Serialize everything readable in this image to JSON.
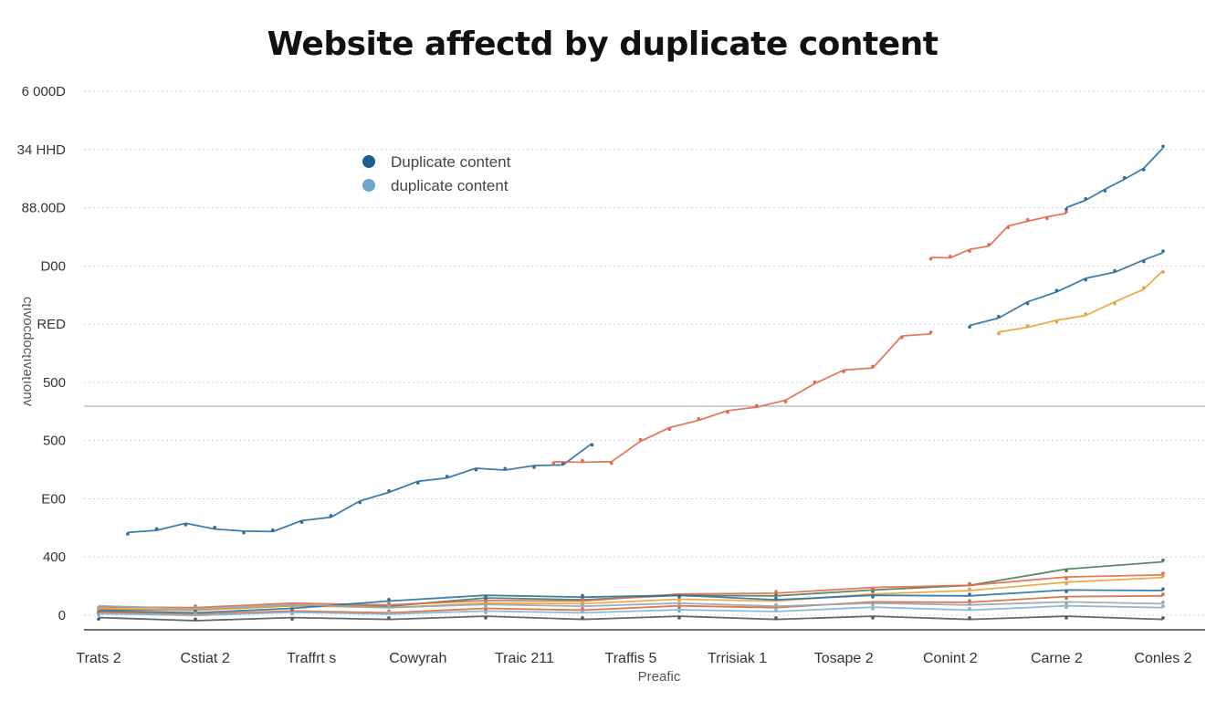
{
  "chart_data": {
    "type": "line",
    "title": "Website affectd by duplicate content",
    "xlabel": "Preafic",
    "ylabel": "ʌuoıʇeʌıʇɔopɔoʌıʇɔ",
    "y_ticks": [
      "6 000D",
      "34 HHD",
      "88.00D",
      "D00",
      "RED",
      "500",
      "500",
      "E00",
      "400",
      "0"
    ],
    "categories": [
      "Trats 2",
      "Cstiat 2",
      "Traffrt s",
      "Cowyrah",
      "Traic 211",
      "Traffis 5",
      "Trrisiak 1",
      "Tosape 2",
      "Conint 2",
      "Carne 2",
      "Conles 2"
    ],
    "grid": true,
    "legend_position": "upper-center",
    "legend": [
      {
        "label": "Duplicate content",
        "color": "#1f5f8b"
      },
      {
        "label": "duplicate content",
        "color": "#6fa8c7"
      }
    ],
    "series": [
      {
        "color": "#2e6f9e",
        "x": [
          0.3,
          0.6,
          0.9,
          1.2,
          1.5,
          1.8,
          2.1,
          2.4,
          2.7,
          3.0,
          3.3,
          3.6,
          3.9,
          4.2,
          4.5,
          4.8,
          5.1
        ],
        "values": [
          0.62,
          0.66,
          0.69,
          0.67,
          0.63,
          0.65,
          0.71,
          0.76,
          0.86,
          0.95,
          1.01,
          1.06,
          1.11,
          1.12,
          1.13,
          1.16,
          1.3
        ]
      },
      {
        "color": "#e06a4e",
        "x": [
          4.7,
          5.0,
          5.3,
          5.6,
          5.9,
          6.2,
          6.5,
          6.8,
          7.1,
          7.4,
          7.7,
          8.0,
          8.3,
          8.6
        ],
        "values": [
          1.16,
          1.18,
          1.16,
          1.34,
          1.42,
          1.5,
          1.55,
          1.6,
          1.63,
          1.78,
          1.86,
          1.9,
          2.12,
          2.16
        ]
      },
      {
        "color": "#e06a4e",
        "x": [
          8.6,
          8.8,
          9.0,
          9.2,
          9.4,
          9.6,
          9.8,
          10.0
        ],
        "values": [
          2.72,
          2.74,
          2.78,
          2.83,
          2.96,
          3.02,
          3.03,
          3.08
        ]
      },
      {
        "color": "#2e6f9e",
        "x": [
          10.0,
          10.2,
          10.4,
          10.6,
          10.8,
          11.0
        ],
        "values": [
          3.1,
          3.18,
          3.24,
          3.34,
          3.4,
          3.58
        ]
      },
      {
        "color": "#2e6f9e",
        "x": [
          9.0,
          9.3,
          9.6,
          9.9,
          10.2,
          10.5,
          10.8,
          11.0
        ],
        "values": [
          2.2,
          2.28,
          2.38,
          2.48,
          2.56,
          2.63,
          2.7,
          2.78
        ]
      },
      {
        "color": "#e8a33c",
        "x": [
          9.3,
          9.6,
          9.9,
          10.2,
          10.5,
          10.8,
          11.0
        ],
        "values": [
          2.15,
          2.21,
          2.24,
          2.3,
          2.38,
          2.5,
          2.62
        ]
      },
      {
        "color": "#4a7c59",
        "x": [
          0,
          1,
          2,
          3,
          4,
          5,
          6,
          7,
          8,
          9,
          10,
          11
        ],
        "values": [
          0.03,
          0.05,
          0.06,
          0.08,
          0.12,
          0.13,
          0.14,
          0.16,
          0.18,
          0.24,
          0.34,
          0.42
        ]
      },
      {
        "color": "#e06a4e",
        "x": [
          0,
          1,
          2,
          3,
          4,
          5,
          6,
          7,
          8,
          9,
          10,
          11
        ],
        "values": [
          0.05,
          0.07,
          0.08,
          0.09,
          0.1,
          0.12,
          0.15,
          0.18,
          0.2,
          0.24,
          0.28,
          0.32
        ]
      },
      {
        "color": "#e8a33c",
        "x": [
          0,
          1,
          2,
          3,
          4,
          5,
          6,
          7,
          8,
          9,
          10,
          11
        ],
        "values": [
          0.04,
          0.05,
          0.06,
          0.07,
          0.08,
          0.1,
          0.11,
          0.12,
          0.15,
          0.2,
          0.24,
          0.3
        ]
      },
      {
        "color": "#2e6f9e",
        "x": [
          0,
          1,
          2,
          3,
          4,
          5,
          6,
          7,
          8,
          9,
          10,
          11
        ],
        "values": [
          0.02,
          0.03,
          0.04,
          0.12,
          0.14,
          0.15,
          0.14,
          0.13,
          0.14,
          0.16,
          0.18,
          0.2
        ]
      },
      {
        "color": "#d36b3f",
        "x": [
          0,
          1,
          2,
          3,
          4,
          5,
          6,
          7,
          8,
          9,
          10,
          11
        ],
        "values": [
          0.01,
          0.02,
          0.02,
          0.03,
          0.04,
          0.05,
          0.06,
          0.07,
          0.09,
          0.11,
          0.13,
          0.16
        ]
      },
      {
        "color": "#7fb3d5",
        "x": [
          0,
          1,
          2,
          3,
          4,
          5,
          6,
          7,
          8,
          9,
          10,
          11
        ],
        "values": [
          0.0,
          0.01,
          0.01,
          0.02,
          0.02,
          0.03,
          0.03,
          0.04,
          0.05,
          0.05,
          0.06,
          0.07
        ]
      },
      {
        "color": "#555555",
        "x": [
          0,
          1,
          2,
          3,
          4,
          5,
          6,
          7,
          8,
          9,
          10,
          11
        ],
        "values": [
          -0.03,
          -0.03,
          -0.03,
          -0.02,
          -0.02,
          -0.02,
          -0.02,
          -0.02,
          -0.02,
          -0.02,
          -0.02,
          -0.02
        ]
      },
      {
        "color": "#9aa5ad",
        "x": [
          0,
          1,
          2,
          3,
          4,
          5,
          6,
          7,
          8,
          9,
          10,
          11
        ],
        "values": [
          0.06,
          0.06,
          0.07,
          0.07,
          0.07,
          0.08,
          0.08,
          0.08,
          0.08,
          0.09,
          0.09,
          0.1
        ]
      }
    ],
    "xlim": [
      0,
      11
    ],
    "ylim": [
      0,
      4
    ]
  }
}
